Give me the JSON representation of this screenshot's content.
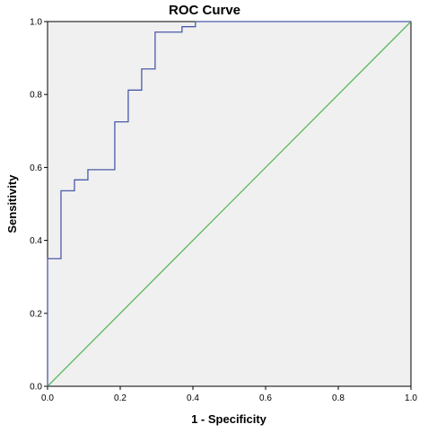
{
  "chart_data": {
    "type": "line",
    "title": "ROC Curve",
    "xlabel": "1 - Specificity",
    "ylabel": "Sensitivity",
    "xlim": [
      0,
      1
    ],
    "ylim": [
      0,
      1
    ],
    "x_ticks": [
      "0.0",
      "0.2",
      "0.4",
      "0.6",
      "0.8",
      "1.0"
    ],
    "y_ticks": [
      "0.0",
      "0.2",
      "0.4",
      "0.6",
      "0.8",
      "1.0"
    ],
    "grid": false,
    "legend": "none",
    "colors": {
      "plot_background": "#f0f0f0",
      "roc_line": "#4a5aa8",
      "reference_line": "#5cb85c"
    },
    "series": [
      {
        "x": [
          0,
          0,
          0.037,
          0.037,
          0.074,
          0.074,
          0.111,
          0.111,
          0.185,
          0.185,
          0.222,
          0.222,
          0.259,
          0.259,
          0.296,
          0.296,
          0.37,
          0.37,
          0.407,
          0.407,
          1.0
        ],
        "y": [
          0,
          0.35,
          0.35,
          0.536,
          0.536,
          0.566,
          0.566,
          0.594,
          0.594,
          0.725,
          0.725,
          0.812,
          0.812,
          0.87,
          0.87,
          0.971,
          0.971,
          0.986,
          0.986,
          1.0,
          1.0
        ]
      },
      {
        "x": [
          0,
          1
        ],
        "y": [
          0,
          1
        ]
      }
    ]
  }
}
